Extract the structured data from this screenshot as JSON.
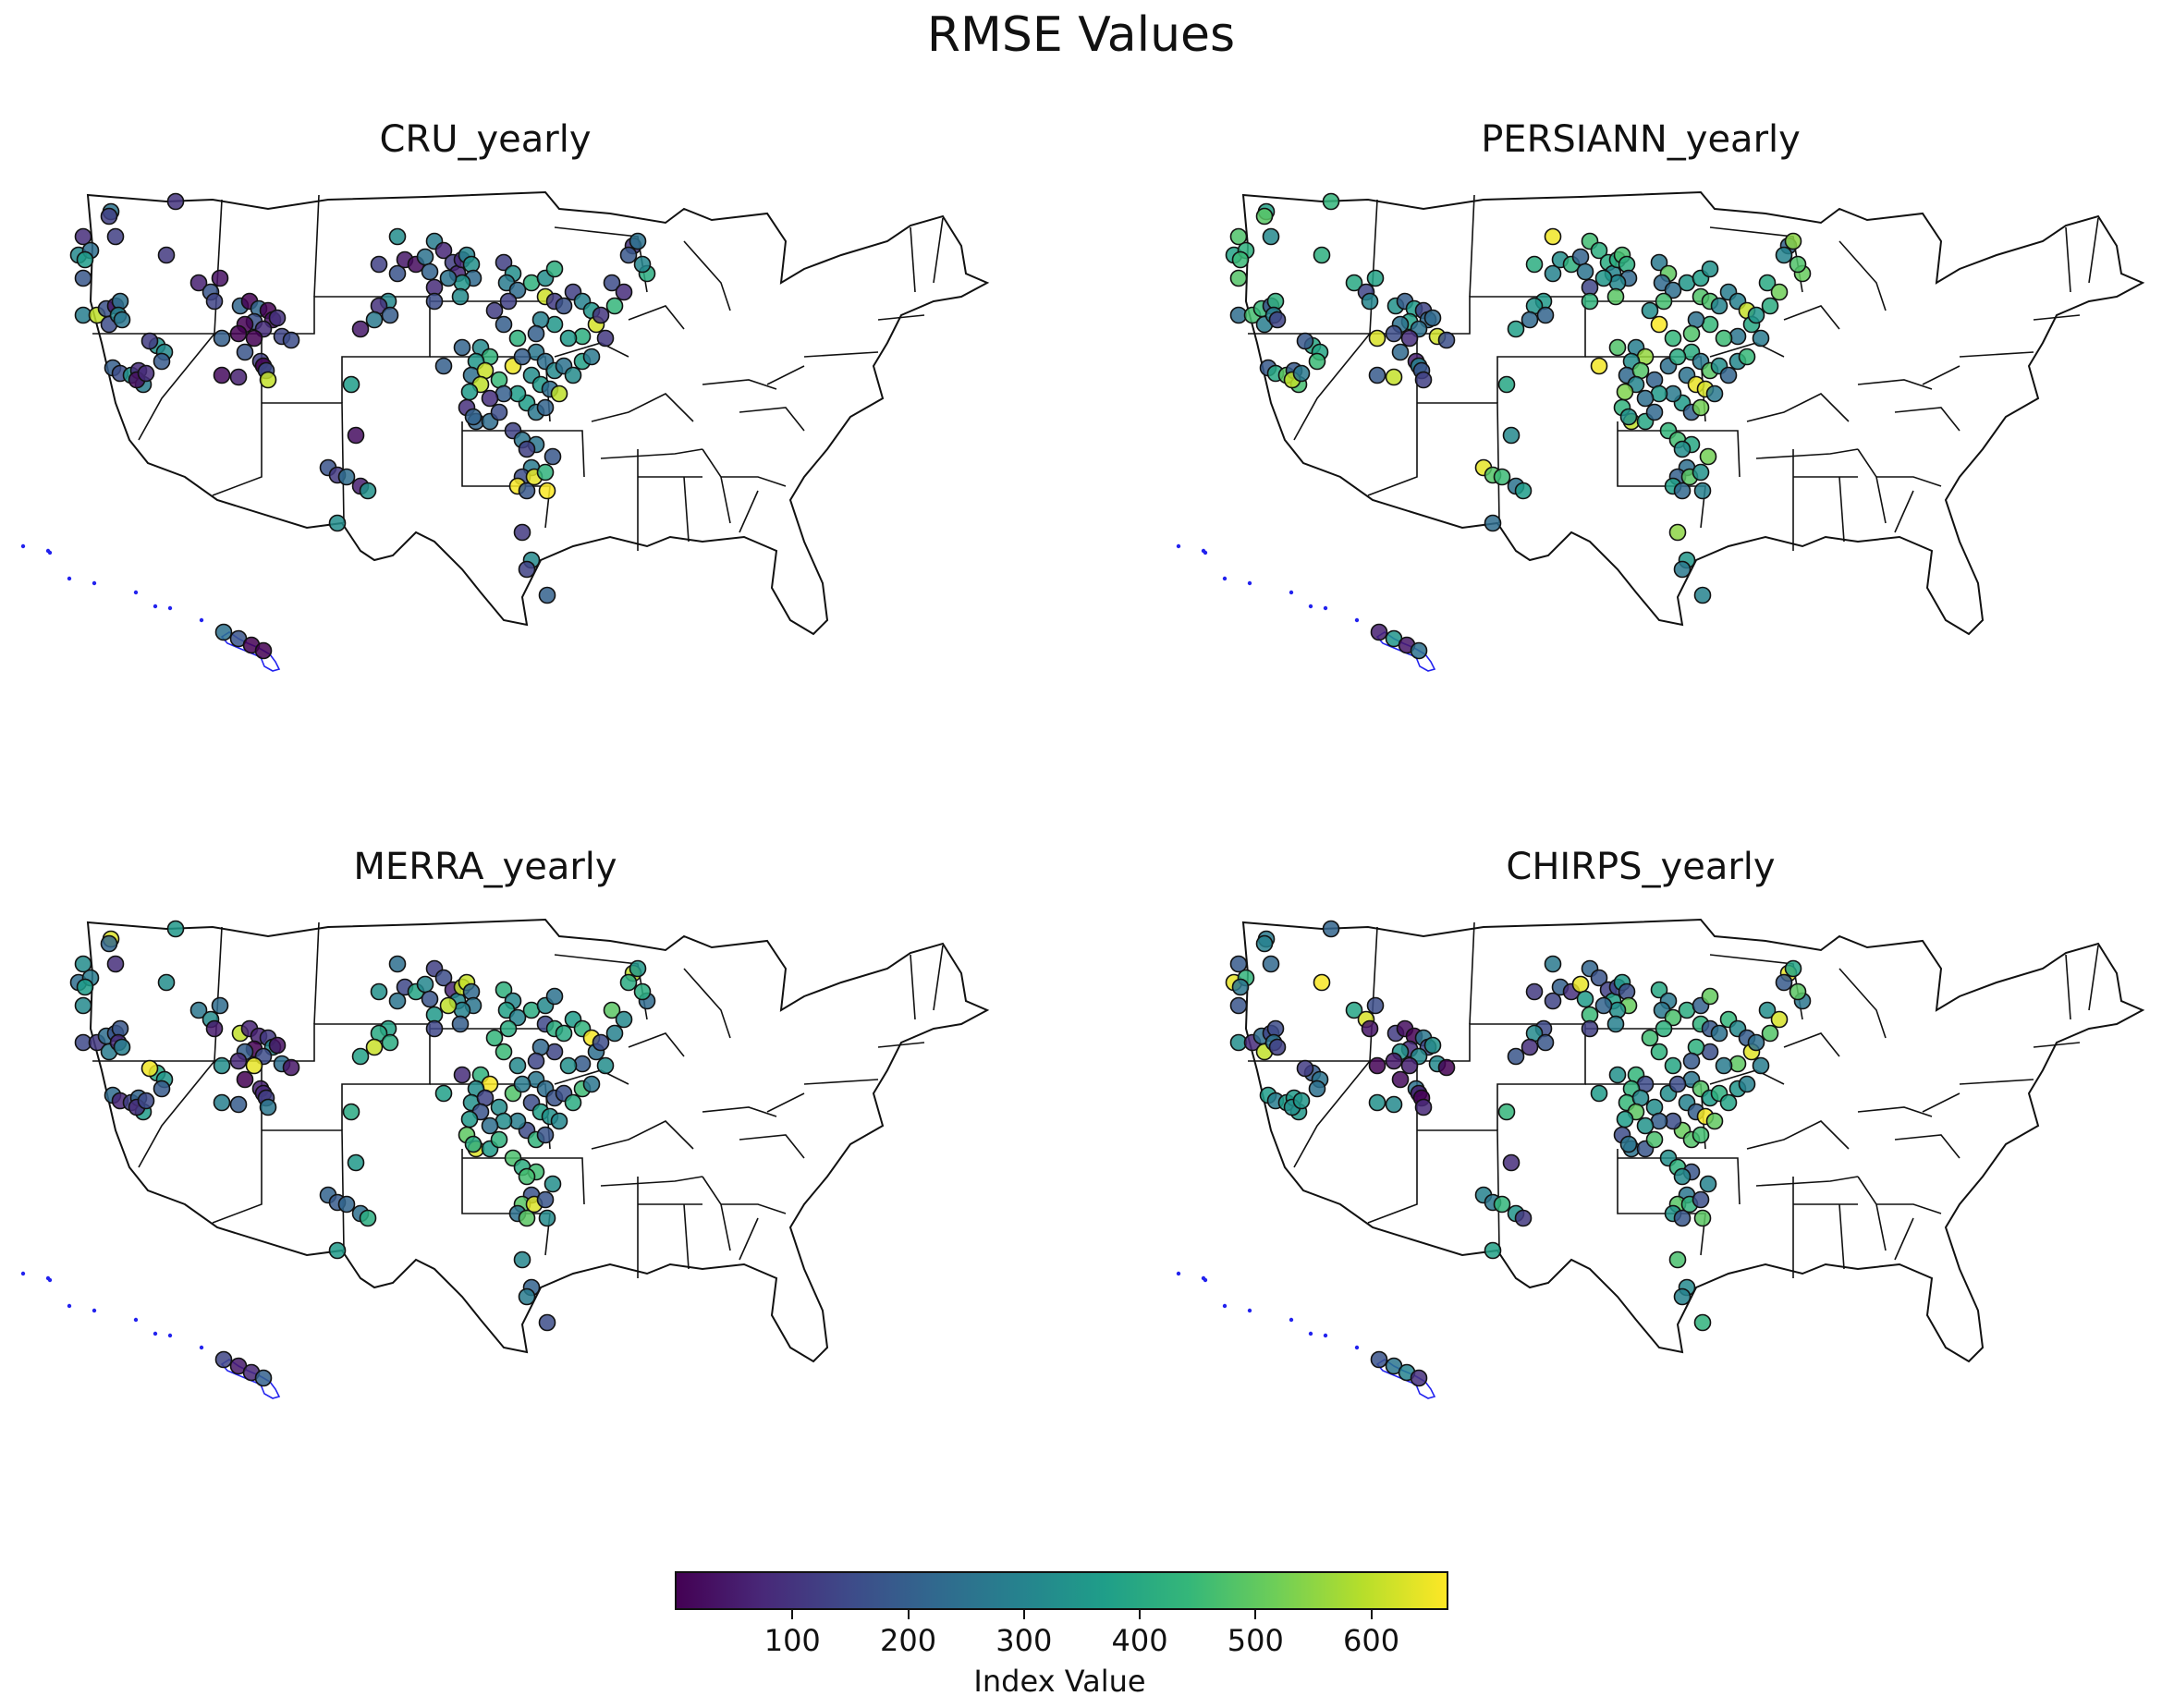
{
  "title": "RMSE Values",
  "colorbar": {
    "label": "Index Value",
    "min": 0,
    "max": 665,
    "ticks": [
      100,
      200,
      300,
      400,
      500,
      600
    ],
    "colors": [
      "#440154",
      "#482878",
      "#3e4a89",
      "#31688e",
      "#26828e",
      "#1f9e89",
      "#35b779",
      "#6ece58",
      "#b5de2b",
      "#fde725"
    ]
  },
  "colors": {
    "state_border": "#111111",
    "hawaii_outline": "#2222ee",
    "marker_edge": "#111111"
  },
  "panels": [
    {
      "title": "CRU_yearly",
      "seed": 11,
      "bias": -0.05
    },
    {
      "title": "PERSIANN_yearly",
      "seed": 37,
      "bias": 0.12
    },
    {
      "title": "MERRA_yearly",
      "seed": 59,
      "bias": 0.02
    },
    {
      "title": "CHIRPS_yearly",
      "seed": 83,
      "bias": 0.05
    }
  ]
}
